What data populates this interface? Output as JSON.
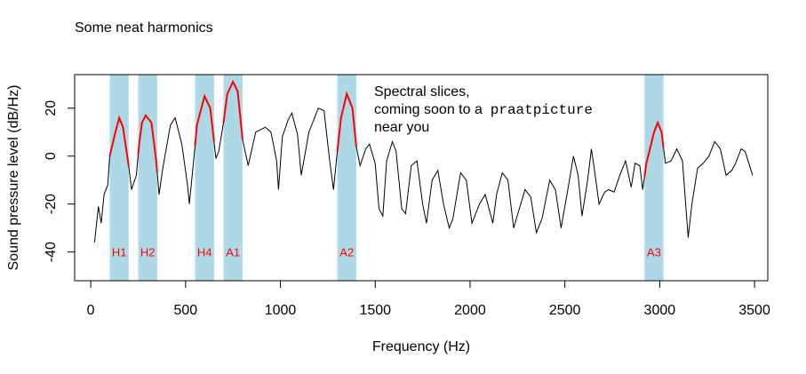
{
  "chart_data": {
    "type": "line",
    "title": "Some neat harmonics",
    "xlabel": "Frequency (Hz)",
    "ylabel": "Sound pressure level (dB/Hz)",
    "xlim": [
      -85,
      3570
    ],
    "ylim": [
      -52,
      34
    ],
    "x_ticks": [
      0,
      500,
      1000,
      1500,
      2000,
      2500,
      3000,
      3500
    ],
    "y_ticks": [
      -40,
      -20,
      0,
      20
    ],
    "grid": false,
    "line_color": "#000000",
    "highlight_color": "#ff0000",
    "band_color": "#add8e6",
    "label_color": "#ff0000",
    "annotation": {
      "line1": "Spectral slices,",
      "line2": "coming soon to a",
      "mono": "praatpicture",
      "line3": "near you"
    },
    "bands": [
      {
        "label": "H1",
        "x0": 100,
        "x1": 200
      },
      {
        "label": "H2",
        "x0": 250,
        "x1": 350
      },
      {
        "label": "H4",
        "x0": 550,
        "x1": 650
      },
      {
        "label": "A1",
        "x0": 700,
        "x1": 800
      },
      {
        "label": "A2",
        "x0": 1300,
        "x1": 1400
      },
      {
        "label": "A3",
        "x0": 2920,
        "x1": 3020
      }
    ],
    "series": [
      {
        "values": [
          [
            20,
            -36
          ],
          [
            40,
            -21
          ],
          [
            55,
            -28
          ],
          [
            70,
            -16
          ],
          [
            90,
            -12
          ],
          [
            100,
            0
          ],
          [
            130,
            10
          ],
          [
            150,
            16
          ],
          [
            170,
            12
          ],
          [
            200,
            -4
          ],
          [
            215,
            -14
          ],
          [
            240,
            -8
          ],
          [
            255,
            5
          ],
          [
            270,
            14
          ],
          [
            290,
            17
          ],
          [
            320,
            14
          ],
          [
            345,
            -2
          ],
          [
            360,
            -16
          ],
          [
            380,
            -5
          ],
          [
            420,
            13
          ],
          [
            445,
            16
          ],
          [
            480,
            5
          ],
          [
            510,
            -12
          ],
          [
            520,
            -20
          ],
          [
            530,
            -12
          ],
          [
            545,
            0
          ],
          [
            560,
            13
          ],
          [
            600,
            25
          ],
          [
            630,
            20
          ],
          [
            660,
            -1
          ],
          [
            675,
            2
          ],
          [
            700,
            14
          ],
          [
            720,
            26
          ],
          [
            750,
            31
          ],
          [
            775,
            27
          ],
          [
            800,
            7
          ],
          [
            830,
            -4
          ],
          [
            850,
            3
          ],
          [
            870,
            10
          ],
          [
            920,
            12
          ],
          [
            950,
            10
          ],
          [
            980,
            -2
          ],
          [
            990,
            -14
          ],
          [
            1010,
            8
          ],
          [
            1040,
            15
          ],
          [
            1060,
            18
          ],
          [
            1090,
            9
          ],
          [
            1110,
            -8
          ],
          [
            1150,
            10
          ],
          [
            1200,
            20
          ],
          [
            1230,
            19
          ],
          [
            1260,
            -2
          ],
          [
            1280,
            -14
          ],
          [
            1300,
            2
          ],
          [
            1320,
            16
          ],
          [
            1350,
            26
          ],
          [
            1380,
            20
          ],
          [
            1400,
            4
          ],
          [
            1420,
            -4
          ],
          [
            1450,
            3
          ],
          [
            1470,
            5
          ],
          [
            1500,
            -3
          ],
          [
            1520,
            -22
          ],
          [
            1540,
            -25
          ],
          [
            1560,
            -2
          ],
          [
            1590,
            6
          ],
          [
            1610,
            2
          ],
          [
            1640,
            -22
          ],
          [
            1660,
            -24
          ],
          [
            1690,
            -4
          ],
          [
            1720,
            -2
          ],
          [
            1750,
            -20
          ],
          [
            1770,
            -28
          ],
          [
            1800,
            -10
          ],
          [
            1830,
            -6
          ],
          [
            1860,
            -20
          ],
          [
            1890,
            -30
          ],
          [
            1910,
            -26
          ],
          [
            1950,
            -7
          ],
          [
            1980,
            -10
          ],
          [
            2010,
            -28
          ],
          [
            2050,
            -20
          ],
          [
            2080,
            -16
          ],
          [
            2120,
            -28
          ],
          [
            2140,
            -16
          ],
          [
            2170,
            -7
          ],
          [
            2200,
            -10
          ],
          [
            2230,
            -30
          ],
          [
            2260,
            -22
          ],
          [
            2290,
            -14
          ],
          [
            2320,
            -17
          ],
          [
            2350,
            -32
          ],
          [
            2380,
            -26
          ],
          [
            2420,
            -10
          ],
          [
            2450,
            -14
          ],
          [
            2480,
            -30
          ],
          [
            2520,
            -12
          ],
          [
            2545,
            0
          ],
          [
            2570,
            -8
          ],
          [
            2590,
            -25
          ],
          [
            2620,
            -10
          ],
          [
            2640,
            3
          ],
          [
            2660,
            -8
          ],
          [
            2680,
            -20
          ],
          [
            2710,
            -15
          ],
          [
            2730,
            -14
          ],
          [
            2760,
            -15
          ],
          [
            2790,
            -8
          ],
          [
            2820,
            -2
          ],
          [
            2850,
            -13
          ],
          [
            2870,
            -3
          ],
          [
            2895,
            -4
          ],
          [
            2910,
            -14
          ],
          [
            2930,
            -3
          ],
          [
            2970,
            10
          ],
          [
            2990,
            14
          ],
          [
            3010,
            10
          ],
          [
            3030,
            -3
          ],
          [
            3060,
            -2
          ],
          [
            3090,
            3
          ],
          [
            3120,
            -2
          ],
          [
            3150,
            -34
          ],
          [
            3170,
            -20
          ],
          [
            3200,
            -5
          ],
          [
            3230,
            -3
          ],
          [
            3260,
            0
          ],
          [
            3290,
            6
          ],
          [
            3320,
            3
          ],
          [
            3350,
            -8
          ],
          [
            3380,
            -6
          ],
          [
            3400,
            -3
          ],
          [
            3430,
            3
          ],
          [
            3450,
            2
          ],
          [
            3470,
            -3
          ],
          [
            3490,
            -8
          ]
        ]
      }
    ]
  }
}
